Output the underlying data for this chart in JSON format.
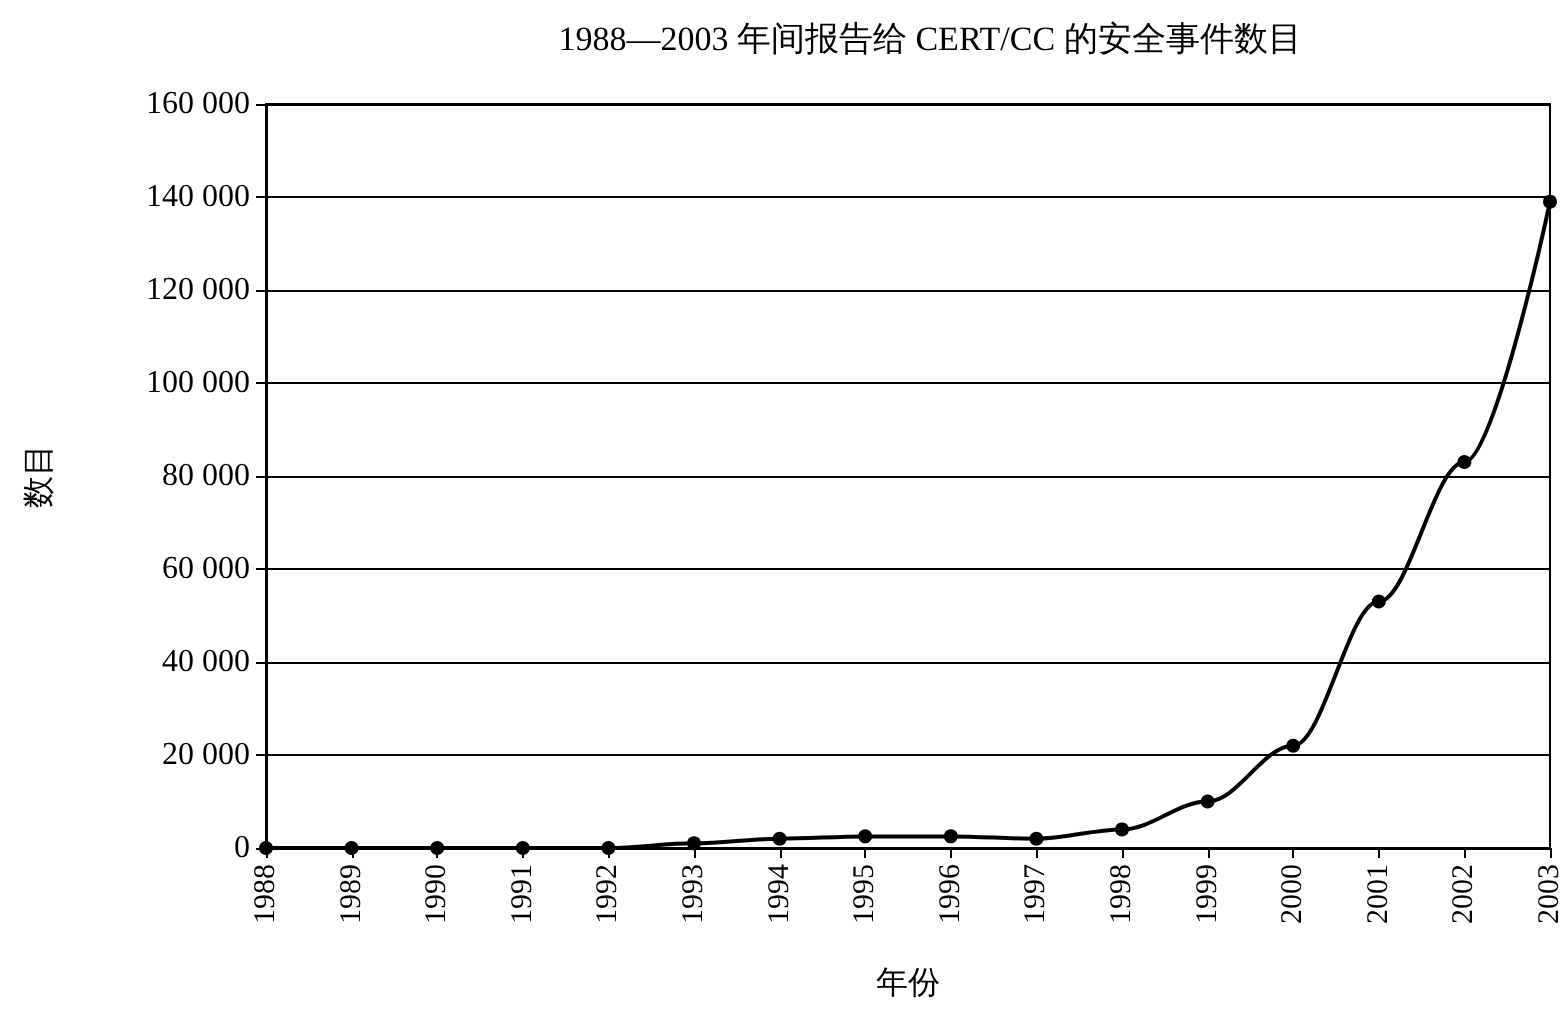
{
  "chart_data": {
    "type": "line",
    "title": "1988—2003 年间报告给 CERT/CC 的安全事件数目",
    "xlabel": "年份",
    "ylabel": "数目",
    "categories": [
      "1988",
      "1989",
      "1990",
      "1991",
      "1992",
      "1993",
      "1994",
      "1995",
      "1996",
      "1997",
      "1998",
      "1999",
      "2000",
      "2001",
      "2002",
      "2003"
    ],
    "series": [
      {
        "color": "#000000",
        "values": [
          0,
          0,
          0,
          0,
          0,
          1000,
          2000,
          2500,
          2500,
          2000,
          4000,
          10000,
          22000,
          53000,
          83000,
          139000
        ]
      }
    ],
    "ylim": [
      0,
      160000
    ],
    "yticks": [
      {
        "value": 0,
        "label": "0"
      },
      {
        "value": 20000,
        "label": "20 000"
      },
      {
        "value": 40000,
        "label": "40 000"
      },
      {
        "value": 60000,
        "label": "60 000"
      },
      {
        "value": 80000,
        "label": "80 000"
      },
      {
        "value": 100000,
        "label": "100 000"
      },
      {
        "value": 120000,
        "label": "120 000"
      },
      {
        "value": 140000,
        "label": "140 000"
      },
      {
        "value": 160000,
        "label": "160 000"
      }
    ],
    "grid": "y",
    "marker": "circle",
    "line_style": "solid"
  }
}
